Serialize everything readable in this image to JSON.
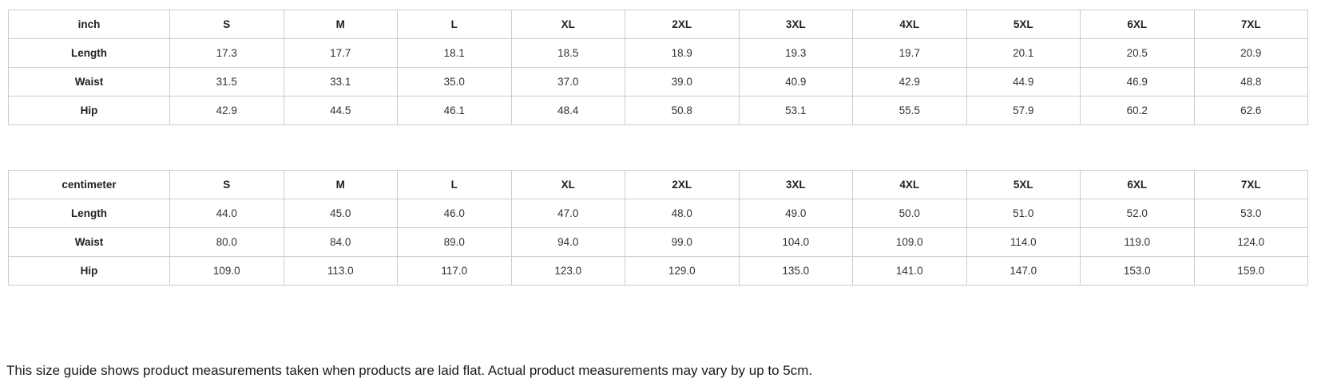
{
  "tables": [
    {
      "unit": "inch",
      "sizes": [
        "S",
        "M",
        "L",
        "XL",
        "2XL",
        "3XL",
        "4XL",
        "5XL",
        "6XL",
        "7XL"
      ],
      "rows": [
        {
          "label": "Length",
          "values": [
            "17.3",
            "17.7",
            "18.1",
            "18.5",
            "18.9",
            "19.3",
            "19.7",
            "20.1",
            "20.5",
            "20.9"
          ]
        },
        {
          "label": "Waist",
          "values": [
            "31.5",
            "33.1",
            "35.0",
            "37.0",
            "39.0",
            "40.9",
            "42.9",
            "44.9",
            "46.9",
            "48.8"
          ]
        },
        {
          "label": "Hip",
          "values": [
            "42.9",
            "44.5",
            "46.1",
            "48.4",
            "50.8",
            "53.1",
            "55.5",
            "57.9",
            "60.2",
            "62.6"
          ]
        }
      ]
    },
    {
      "unit": "centimeter",
      "sizes": [
        "S",
        "M",
        "L",
        "XL",
        "2XL",
        "3XL",
        "4XL",
        "5XL",
        "6XL",
        "7XL"
      ],
      "rows": [
        {
          "label": "Length",
          "values": [
            "44.0",
            "45.0",
            "46.0",
            "47.0",
            "48.0",
            "49.0",
            "50.0",
            "51.0",
            "52.0",
            "53.0"
          ]
        },
        {
          "label": "Waist",
          "values": [
            "80.0",
            "84.0",
            "89.0",
            "94.0",
            "99.0",
            "104.0",
            "109.0",
            "114.0",
            "119.0",
            "124.0"
          ]
        },
        {
          "label": "Hip",
          "values": [
            "109.0",
            "113.0",
            "117.0",
            "123.0",
            "129.0",
            "135.0",
            "141.0",
            "147.0",
            "153.0",
            "159.0"
          ]
        }
      ]
    }
  ],
  "note": "This size guide shows product measurements taken when products are laid flat. Actual product measurements may vary by up to 5cm.",
  "colors": {
    "table_border": "#cccccc",
    "header_text": "#222222",
    "cell_text": "#333333",
    "note_text": "#1a1a1a"
  }
}
